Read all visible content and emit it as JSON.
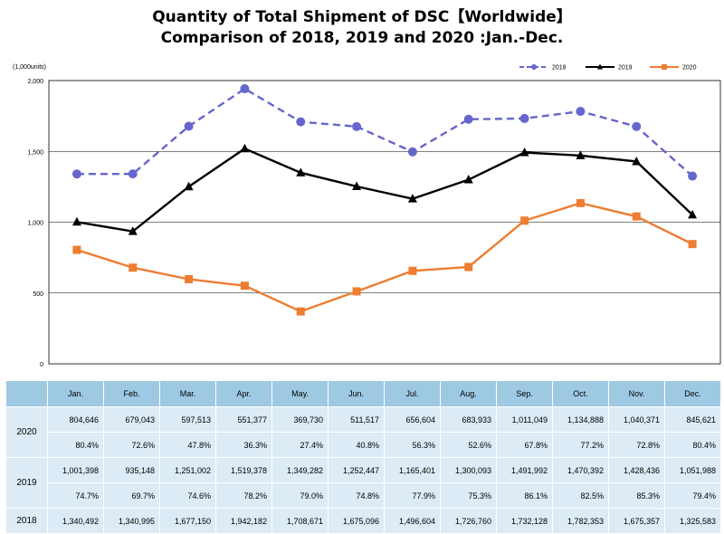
{
  "title_line1": "Quantity of Total Shipment of DSC【Worldwide】",
  "title_line2": "Comparison of 2018, 2019 and 2020 :Jan.-Dec.",
  "chart_data": {
    "type": "line",
    "title": "Quantity of Total Shipment of DSC【Worldwide】 Comparison of 2018, 2019 and 2020 :Jan.-Dec.",
    "unit_label": "(1,000units)",
    "categories": [
      "Jan.",
      "Feb.",
      "Mar.",
      "Apr.",
      "May.",
      "Jun.",
      "Jul.",
      "Aug.",
      "Sep.",
      "Oct.",
      "Nov.",
      "Dec."
    ],
    "ylim": [
      0,
      2000
    ],
    "yticks": [
      "0",
      "500",
      "1,000",
      "1,500",
      "2,000"
    ],
    "ytick_values": [
      0,
      500,
      1000,
      1500,
      2000
    ],
    "grid": true,
    "legend_position": "top-right",
    "series": [
      {
        "name": "2018",
        "color": "#6666cc",
        "style": "dashed",
        "marker": "circle",
        "values": [
          1340.492,
          1340.995,
          1677.15,
          1942.182,
          1708.671,
          1675.096,
          1496.604,
          1726.76,
          1732.128,
          1782.353,
          1675.357,
          1325.583
        ]
      },
      {
        "name": "2019",
        "color": "#000000",
        "style": "solid",
        "marker": "triangle",
        "values": [
          1001.398,
          935.148,
          1251.002,
          1519.378,
          1349.282,
          1252.447,
          1165.401,
          1300.093,
          1491.992,
          1470.392,
          1428.436,
          1051.988
        ]
      },
      {
        "name": "2020",
        "color": "#ed7d31",
        "style": "solid",
        "marker": "square",
        "values": [
          804.646,
          679.043,
          597.513,
          551.377,
          369.73,
          511.517,
          656.604,
          683.933,
          1011.049,
          1134.888,
          1040.371,
          845.621
        ]
      }
    ]
  },
  "table": {
    "headers": [
      "Jan.",
      "Feb.",
      "Mar.",
      "Apr.",
      "May.",
      "Jun.",
      "Jul.",
      "Aug.",
      "Sep.",
      "Oct.",
      "Nov.",
      "Dec."
    ],
    "rows": [
      {
        "year": "2020",
        "values": [
          "804,646",
          "679,043",
          "597,513",
          "551,377",
          "369,730",
          "511,517",
          "656,604",
          "683,933",
          "1,011,049",
          "1,134,888",
          "1,040,371",
          "845,621"
        ],
        "ratios": [
          "80.4%",
          "72.6%",
          "47.8%",
          "36.3%",
          "27.4%",
          "40.8%",
          "56.3%",
          "52.6%",
          "67.8%",
          "77.2%",
          "72.8%",
          "80.4%"
        ]
      },
      {
        "year": "2019",
        "values": [
          "1,001,398",
          "935,148",
          "1,251,002",
          "1,519,378",
          "1,349,282",
          "1,252,447",
          "1,165,401",
          "1,300,093",
          "1,491,992",
          "1,470,392",
          "1,428,436",
          "1,051,988"
        ],
        "ratios": [
          "74.7%",
          "69.7%",
          "74.6%",
          "78.2%",
          "79.0%",
          "74.8%",
          "77.9%",
          "75.3%",
          "86.1%",
          "82.5%",
          "85.3%",
          "79.4%"
        ]
      },
      {
        "year": "2018",
        "values": [
          "1,340,492",
          "1,340,995",
          "1,677,150",
          "1,942,182",
          "1,708,671",
          "1,675,096",
          "1,496,604",
          "1,726,760",
          "1,732,128",
          "1,782,353",
          "1,675,357",
          "1,325,583"
        ]
      }
    ]
  }
}
